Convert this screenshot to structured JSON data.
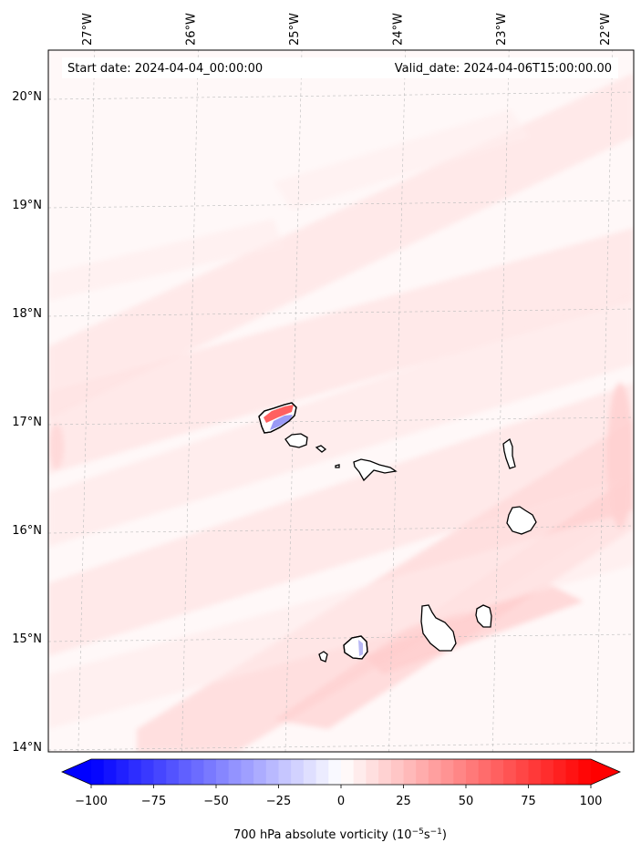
{
  "map": {
    "lon_ticks": [
      {
        "value": -27,
        "label": "27°W"
      },
      {
        "value": -26,
        "label": "26°W"
      },
      {
        "value": -25,
        "label": "25°W"
      },
      {
        "value": -24,
        "label": "24°W"
      },
      {
        "value": -23,
        "label": "23°W"
      },
      {
        "value": -22,
        "label": "22°W"
      }
    ],
    "lat_ticks": [
      {
        "value": 20,
        "label": "20°N"
      },
      {
        "value": 19,
        "label": "19°N"
      },
      {
        "value": 18,
        "label": "18°N"
      },
      {
        "value": 17,
        "label": "17°N"
      },
      {
        "value": 16,
        "label": "16°N"
      },
      {
        "value": 15,
        "label": "15°N"
      },
      {
        "value": 14,
        "label": "14°N"
      }
    ],
    "start_date": "Start date: 2024-04-04_00:00:00",
    "valid_date": "Valid_date: 2024-04-06T15:00:00.00",
    "gridlines": true
  },
  "colorbar": {
    "min": -100,
    "max": 100,
    "ticks": [
      {
        "value": -100,
        "label": "−100"
      },
      {
        "value": -75,
        "label": "−75"
      },
      {
        "value": -50,
        "label": "−50"
      },
      {
        "value": -25,
        "label": "−25"
      },
      {
        "value": 0,
        "label": "0"
      },
      {
        "value": 25,
        "label": "25"
      },
      {
        "value": 50,
        "label": "50"
      },
      {
        "value": 75,
        "label": "75"
      },
      {
        "value": 100,
        "label": "100"
      }
    ],
    "label_main": "700 hPa absolute vorticity (10",
    "label_sup1": "−5",
    "label_mid": "s",
    "label_sup2": "−1",
    "label_end": ")",
    "neg_color": "#0000ff",
    "zero_color": "#ffffff",
    "pos_color": "#ff0000",
    "extend": "both"
  }
}
